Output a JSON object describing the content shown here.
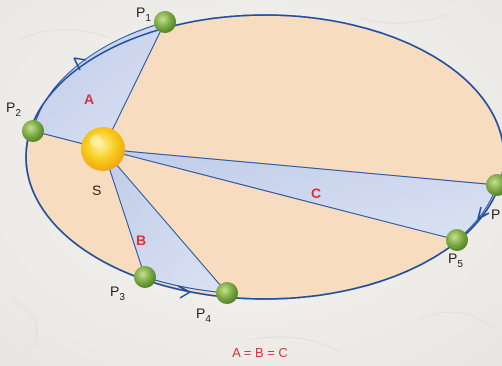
{
  "diagram": {
    "sun_label": "S",
    "area_labels": {
      "a": "A",
      "b": "B",
      "c": "C"
    },
    "planet_positions": [
      {
        "id": "p1",
        "letter": "P",
        "sub": "1"
      },
      {
        "id": "p2",
        "letter": "P",
        "sub": "2"
      },
      {
        "id": "p3",
        "letter": "P",
        "sub": "3"
      },
      {
        "id": "p4",
        "letter": "P",
        "sub": "4"
      },
      {
        "id": "p5",
        "letter": "P",
        "sub": "5"
      },
      {
        "id": "p6",
        "letter": "P",
        "sub": ""
      }
    ],
    "equation": "A = B = C",
    "colors": {
      "orbit": "#1f4f9e",
      "ellipse_fill": "#f7dcc0",
      "sector_fill": "#c7d2ec",
      "sun": "#f6c31a",
      "planet": "#7aa843",
      "area_label": "#d8323a",
      "background": "#f4f3f1"
    }
  }
}
